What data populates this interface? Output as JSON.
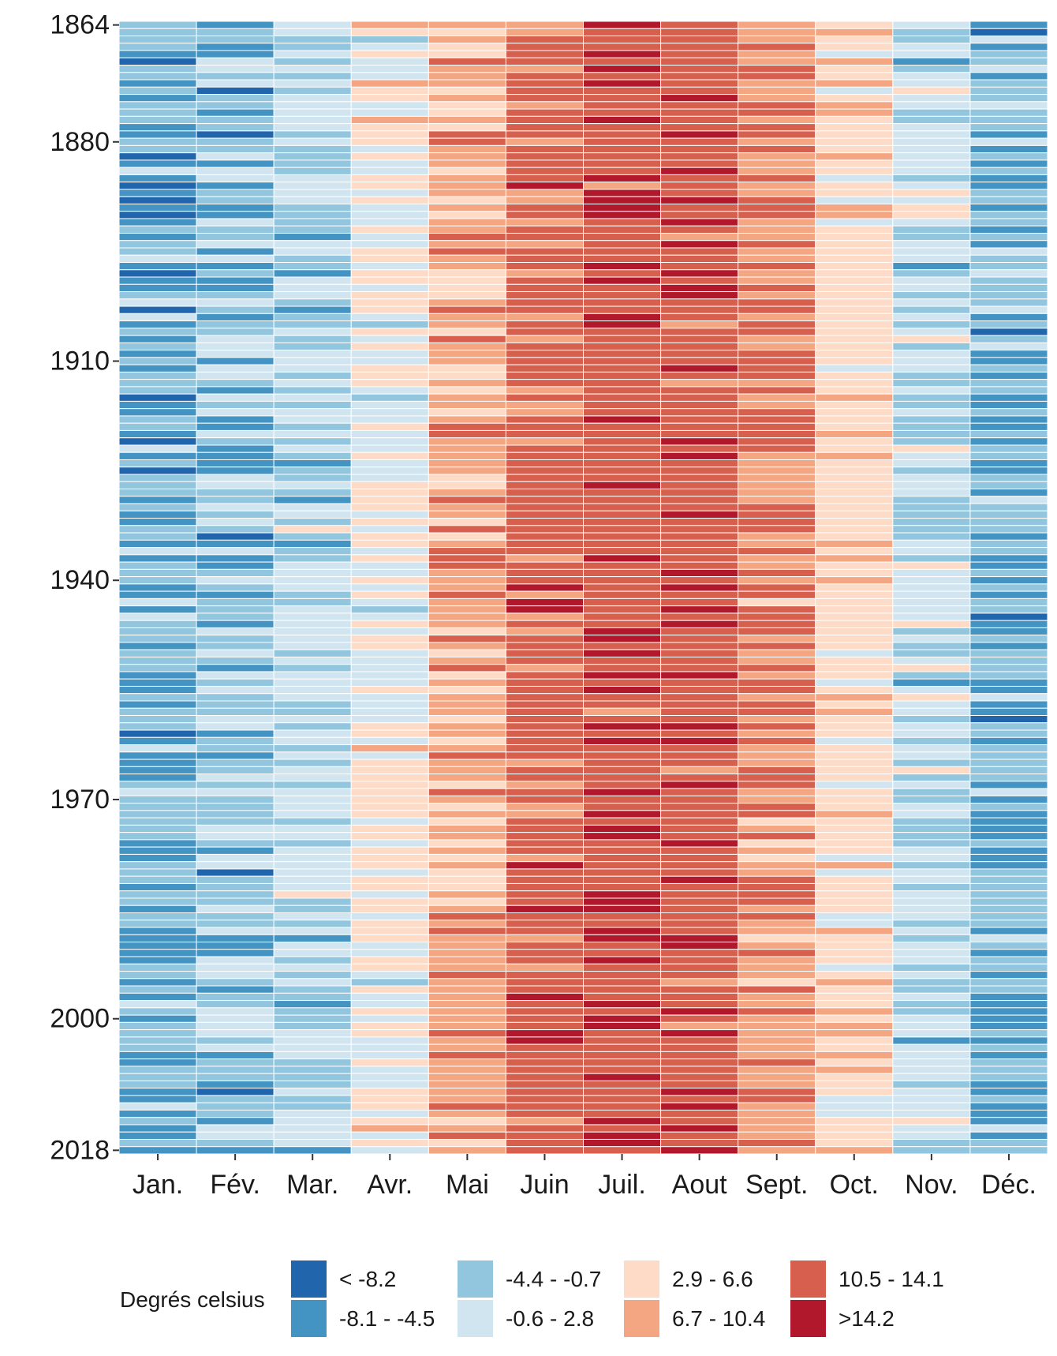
{
  "chart_data": {
    "type": "heatmap",
    "title": "",
    "xlabel": "",
    "ylabel": "",
    "x_categories": [
      "Jan.",
      "Fév.",
      "Mar.",
      "Avr.",
      "Mai",
      "Juin",
      "Juil.",
      "Aout",
      "Sept.",
      "Oct.",
      "Nov.",
      "Déc."
    ],
    "y_range": [
      1864,
      2018
    ],
    "y_ticks": [
      "1864",
      "1880",
      "1910",
      "1940",
      "1970",
      "2000",
      "2018"
    ],
    "grid": false,
    "legend_position": "bottom",
    "legend": {
      "title": "Degrés celsius",
      "classes": [
        {
          "label": "< -8.2",
          "color": "#2166ac"
        },
        {
          "label": "-8.1 - -4.5",
          "color": "#4393c3"
        },
        {
          "label": "-4.4 - -0.7",
          "color": "#92c5de"
        },
        {
          "label": "-0.6 - 2.8",
          "color": "#d1e5f0"
        },
        {
          "label": "2.9 - 6.6",
          "color": "#fddbc7"
        },
        {
          "label": "6.7 - 10.4",
          "color": "#f4a582"
        },
        {
          "label": "10.5 - 14.1",
          "color": "#d6604d"
        },
        {
          "label": ">14.2",
          "color": "#b2182b"
        }
      ]
    },
    "monthly_class_weights": [
      {
        "month": "Jan.",
        "weights": [
          0.06,
          0.38,
          0.46,
          0.1,
          0,
          0,
          0,
          0
        ]
      },
      {
        "month": "Fév.",
        "weights": [
          0.03,
          0.27,
          0.5,
          0.2,
          0,
          0,
          0,
          0
        ]
      },
      {
        "month": "Mar.",
        "weights": [
          0,
          0.04,
          0.4,
          0.52,
          0.04,
          0,
          0,
          0
        ]
      },
      {
        "month": "Avr.",
        "weights": [
          0,
          0,
          0.03,
          0.4,
          0.55,
          0.02,
          0,
          0
        ]
      },
      {
        "month": "Mai",
        "weights": [
          0,
          0,
          0,
          0,
          0.2,
          0.6,
          0.2,
          0
        ]
      },
      {
        "month": "Juin",
        "weights": [
          0,
          0,
          0,
          0,
          0,
          0.15,
          0.77,
          0.08
        ]
      },
      {
        "month": "Juil.",
        "weights": [
          0,
          0,
          0,
          0,
          0,
          0.02,
          0.7,
          0.28
        ]
      },
      {
        "month": "Aout",
        "weights": [
          0,
          0,
          0,
          0,
          0,
          0.05,
          0.77,
          0.18
        ]
      },
      {
        "month": "Sept.",
        "weights": [
          0,
          0,
          0,
          0,
          0.05,
          0.55,
          0.4,
          0
        ]
      },
      {
        "month": "Oct.",
        "weights": [
          0,
          0,
          0,
          0.1,
          0.7,
          0.2,
          0,
          0
        ]
      },
      {
        "month": "Nov.",
        "weights": [
          0,
          0.02,
          0.35,
          0.55,
          0.08,
          0,
          0,
          0
        ]
      },
      {
        "month": "Déc.",
        "weights": [
          0.04,
          0.35,
          0.48,
          0.13,
          0,
          0,
          0,
          0
        ]
      }
    ]
  }
}
